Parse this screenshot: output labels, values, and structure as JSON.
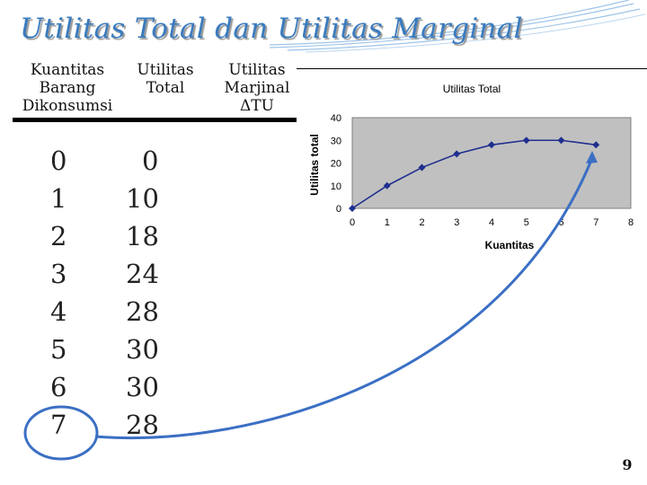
{
  "slide": {
    "title": "Utilitas Total dan Utilitas Marginal",
    "page_number": "9"
  },
  "table": {
    "headers": {
      "quantity": [
        "Kuantitas",
        "Barang",
        "Dikonsumsi"
      ],
      "total_utility": [
        "Utilitas",
        "Total"
      ],
      "marginal_utility": [
        "Utilitas",
        "Marjinal",
        "ΔTU"
      ]
    },
    "quantities": [
      "0",
      "1",
      "2",
      "3",
      "4",
      "5",
      "6",
      "7"
    ],
    "total_utilities": [
      "0",
      "10",
      "18",
      "24",
      "28",
      "30",
      "30",
      "28"
    ]
  },
  "chart_data": {
    "type": "line",
    "title": "Utilitas Total",
    "xlabel": "Kuantitas",
    "ylabel": "Utilitas total",
    "x": [
      0,
      1,
      2,
      3,
      4,
      5,
      6,
      7
    ],
    "y": [
      0,
      10,
      18,
      24,
      28,
      30,
      30,
      28
    ],
    "x_ticks": [
      "0",
      "1",
      "2",
      "3",
      "4",
      "5",
      "6",
      "7",
      "8"
    ],
    "y_ticks": [
      "0",
      "10",
      "20",
      "30",
      "40"
    ],
    "xlim": [
      0,
      8
    ],
    "ylim": [
      0,
      40
    ],
    "grid": false,
    "legend": "none",
    "plot_background": "#c0c0c0",
    "line_color": "#1f2f8f",
    "marker": "diamond"
  },
  "annotation": {
    "highlight_color": "#3b6fc4"
  }
}
